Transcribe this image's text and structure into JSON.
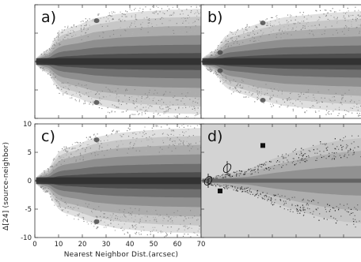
{
  "chart_data": [
    {
      "type": "scatter",
      "panel": "a)",
      "xlim": [
        0,
        70
      ],
      "ylim": [
        -10,
        10
      ],
      "x_ticks": [
        0,
        10,
        20,
        30,
        40,
        50,
        60,
        70
      ],
      "y_ticks": [
        -10,
        -5,
        0,
        5,
        10
      ],
      "xlabel": "",
      "ylabel": "",
      "background": "#ffffff",
      "grid": false,
      "density_profile": [
        {
          "x": 1,
          "halfwidth": 0.8
        },
        {
          "x": 4,
          "halfwidth": 1.8
        },
        {
          "x": 6,
          "halfwidth": 2.2
        },
        {
          "x": 8,
          "halfwidth": 3.8
        },
        {
          "x": 10,
          "halfwidth": 5.0
        },
        {
          "x": 12,
          "halfwidth": 5.6
        },
        {
          "x": 18,
          "halfwidth": 6.4
        },
        {
          "x": 25,
          "halfwidth": 7.6
        },
        {
          "x": 35,
          "halfwidth": 8.4
        },
        {
          "x": 45,
          "halfwidth": 8.8
        },
        {
          "x": 55,
          "halfwidth": 9.1
        },
        {
          "x": 65,
          "halfwidth": 9.2
        },
        {
          "x": 70,
          "halfwidth": 9.3
        }
      ],
      "features": [
        {
          "x": 26,
          "y": 7.2,
          "kind": "blob"
        },
        {
          "x": 26,
          "y": -7.2,
          "kind": "blob"
        }
      ]
    },
    {
      "type": "scatter",
      "panel": "b)",
      "xlim": [
        0,
        70
      ],
      "ylim": [
        -10,
        10
      ],
      "x_ticks": [
        0,
        10,
        20,
        30,
        40,
        50,
        60,
        70
      ],
      "y_ticks": [
        -10,
        -5,
        0,
        5,
        10
      ],
      "xlabel": "",
      "ylabel": "",
      "background": "#ffffff",
      "grid": false,
      "density_profile": [
        {
          "x": 1,
          "halfwidth": 0.8
        },
        {
          "x": 4,
          "halfwidth": 1.6
        },
        {
          "x": 6,
          "halfwidth": 2.0
        },
        {
          "x": 8,
          "halfwidth": 3.2
        },
        {
          "x": 10,
          "halfwidth": 4.4
        },
        {
          "x": 12,
          "halfwidth": 5.0
        },
        {
          "x": 18,
          "halfwidth": 5.8
        },
        {
          "x": 25,
          "halfwidth": 6.8
        },
        {
          "x": 35,
          "halfwidth": 7.8
        },
        {
          "x": 45,
          "halfwidth": 8.2
        },
        {
          "x": 55,
          "halfwidth": 8.6
        },
        {
          "x": 65,
          "halfwidth": 8.8
        },
        {
          "x": 70,
          "halfwidth": 9.0
        }
      ],
      "features": [
        {
          "x": 8,
          "y": 1.6,
          "kind": "blob"
        },
        {
          "x": 8,
          "y": -1.6,
          "kind": "blob"
        },
        {
          "x": 26,
          "y": 6.8,
          "kind": "blob"
        },
        {
          "x": 26,
          "y": -6.8,
          "kind": "blob"
        }
      ]
    },
    {
      "type": "scatter",
      "panel": "c)",
      "xlim": [
        0,
        70
      ],
      "ylim": [
        -10,
        10
      ],
      "x_ticks": [
        0,
        10,
        20,
        30,
        40,
        50,
        60,
        70
      ],
      "x_tick_labels": [
        "0",
        "10",
        "20",
        "30",
        "40",
        "50",
        "60",
        "70"
      ],
      "y_ticks": [
        -10,
        -5,
        0,
        5,
        10
      ],
      "y_tick_labels": [
        "-10",
        "-5",
        "0",
        "5",
        "10"
      ],
      "xlabel": "Nearest Neighbor Dist.(arcsec)",
      "ylabel": "Δ[24] (source-neighbor)",
      "background": "#ffffff",
      "grid": false,
      "density_profile": [
        {
          "x": 1,
          "halfwidth": 0.8
        },
        {
          "x": 4,
          "halfwidth": 1.8
        },
        {
          "x": 6,
          "halfwidth": 2.2
        },
        {
          "x": 8,
          "halfwidth": 3.8
        },
        {
          "x": 10,
          "halfwidth": 5.0
        },
        {
          "x": 12,
          "halfwidth": 5.6
        },
        {
          "x": 18,
          "halfwidth": 6.4
        },
        {
          "x": 25,
          "halfwidth": 7.6
        },
        {
          "x": 35,
          "halfwidth": 8.4
        },
        {
          "x": 45,
          "halfwidth": 8.8
        },
        {
          "x": 55,
          "halfwidth": 9.1
        },
        {
          "x": 65,
          "halfwidth": 9.2
        },
        {
          "x": 70,
          "halfwidth": 9.3
        }
      ],
      "features": [
        {
          "x": 26,
          "y": 7.2,
          "kind": "blob"
        },
        {
          "x": 26,
          "y": -7.2,
          "kind": "blob"
        }
      ]
    },
    {
      "type": "scatter",
      "panel": "d)",
      "xlim": [
        0,
        70
      ],
      "ylim": [
        -10,
        10
      ],
      "x_ticks": [
        0,
        10,
        20,
        30,
        40,
        50,
        60,
        70
      ],
      "y_ticks": [
        -10,
        -5,
        0,
        5,
        10
      ],
      "xlabel": "",
      "ylabel": "",
      "background": "#d3d3d3",
      "grid": false,
      "density_profile": [
        {
          "x": 2,
          "halfwidth": 0.4
        },
        {
          "x": 10,
          "halfwidth": 1.2
        },
        {
          "x": 20,
          "halfwidth": 2.0
        },
        {
          "x": 30,
          "halfwidth": 3.8
        },
        {
          "x": 40,
          "halfwidth": 5.2
        },
        {
          "x": 50,
          "halfwidth": 6.4
        },
        {
          "x": 60,
          "halfwidth": 7.2
        },
        {
          "x": 70,
          "halfwidth": 7.6
        }
      ],
      "features": [
        {
          "x": 26,
          "y": 6.2,
          "kind": "dark-spot"
        },
        {
          "x": 11,
          "y": 2.2,
          "kind": "contour"
        },
        {
          "x": 3,
          "y": 0,
          "kind": "contour"
        },
        {
          "x": 8,
          "y": -1.8,
          "kind": "dark-spot"
        }
      ]
    }
  ]
}
